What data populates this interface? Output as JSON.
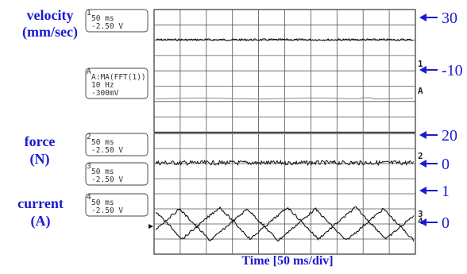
{
  "labels": {
    "velocity": [
      "velocity",
      "(mm/sec)"
    ],
    "force": [
      "force",
      "(N)"
    ],
    "current": [
      "current",
      "(A)"
    ],
    "xlabel": "Time [50 ms/div]"
  },
  "scale_labels": [
    "30",
    "-10",
    "20",
    "0",
    "1",
    "0"
  ],
  "channel_boxes": [
    {
      "num": "1",
      "line1": "50 ms",
      "line2": "-2.50 V"
    },
    {
      "num": "A",
      "line1": "A:MA(FFT(1))",
      "line2": "10 Hz",
      "line3": "-300mV"
    },
    {
      "num": "2",
      "line1": "50 ms",
      "line2": "-2.50 V"
    },
    {
      "num": "3",
      "line1": "50 ms",
      "line2": "-2.50 V"
    },
    {
      "num": "4",
      "line1": "50 ms",
      "line2": "-2.50 V"
    }
  ],
  "trace_markers": [
    "1",
    "A",
    "2",
    "3",
    "4"
  ],
  "colors": {
    "label": "#1a1ad2",
    "grid": "#333333",
    "trace": "#111111"
  },
  "chart_data": {
    "type": "line",
    "xlabel": "Time [50 ms/div]",
    "x_unit": "ms",
    "xlim": [
      0,
      500
    ],
    "series": [
      {
        "name": "velocity",
        "description": "nearly constant, noisy",
        "level": 30
      },
      {
        "name": "velocity MA(FFT) 10 Hz",
        "description": "smoothed, nearly flat",
        "level": -10
      },
      {
        "name": "force",
        "description": "noise around 0",
        "level": 0
      },
      {
        "name": "current",
        "description": "two phase-shifted triangular waves between 0 and about 1 A",
        "period_ms": 100,
        "min": 0,
        "max": 1
      }
    ]
  }
}
